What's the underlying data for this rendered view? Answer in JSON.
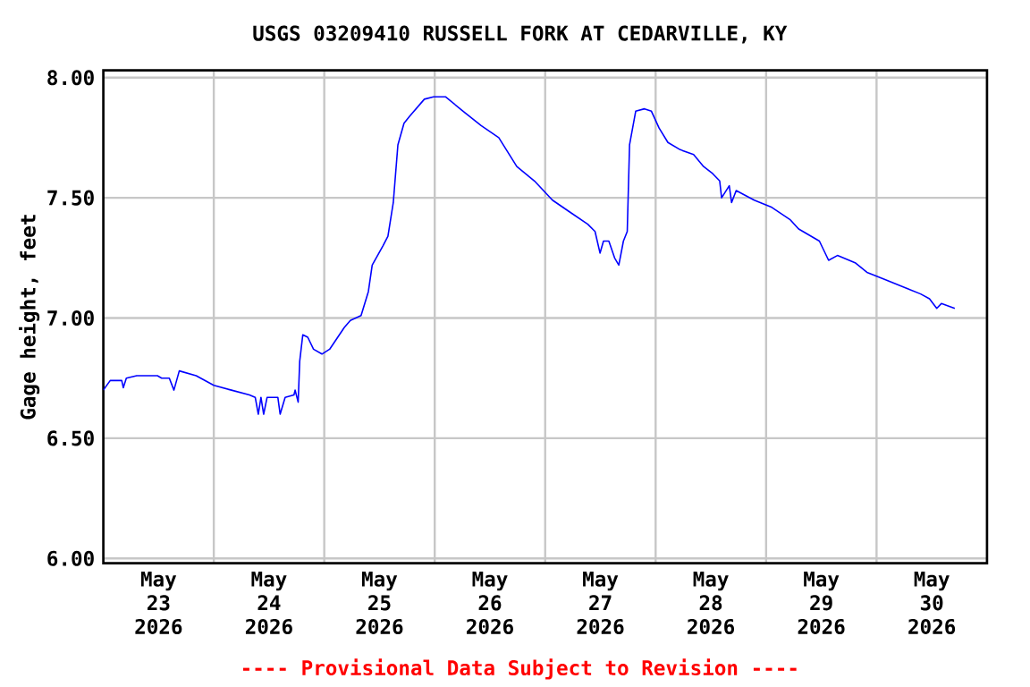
{
  "chart_data": {
    "type": "line",
    "title": "USGS 03209410 RUSSELL FORK AT CEDARVILLE, KY",
    "ylabel": "Gage height, feet",
    "annotations": [
      "---- Provisional Data Subject to Revision ----"
    ],
    "x": [
      "2026-05-23T00:00",
      "2026-05-23T01:30",
      "2026-05-23T04:00",
      "2026-05-23T04:20",
      "2026-05-23T05:00",
      "2026-05-23T07:15",
      "2026-05-23T11:45",
      "2026-05-23T12:40",
      "2026-05-23T14:20",
      "2026-05-23T15:20",
      "2026-05-23T16:30",
      "2026-05-23T20:10",
      "2026-05-23T22:05",
      "2026-05-24T00:00",
      "2026-05-24T03:50",
      "2026-05-24T07:45",
      "2026-05-24T09:00",
      "2026-05-24T09:40",
      "2026-05-24T10:15",
      "2026-05-24T10:50",
      "2026-05-24T11:35",
      "2026-05-24T13:55",
      "2026-05-24T14:25",
      "2026-05-24T15:30",
      "2026-05-24T17:25",
      "2026-05-24T17:40",
      "2026-05-24T18:20",
      "2026-05-24T18:40",
      "2026-05-24T19:20",
      "2026-05-24T20:25",
      "2026-05-24T21:40",
      "2026-05-24T23:30",
      "2026-05-25T01:10",
      "2026-05-25T04:20",
      "2026-05-25T05:40",
      "2026-05-25T08:00",
      "2026-05-25T09:35",
      "2026-05-25T10:25",
      "2026-05-25T12:45",
      "2026-05-25T13:50",
      "2026-05-25T15:00",
      "2026-05-25T16:00",
      "2026-05-25T17:20",
      "2026-05-25T18:35",
      "2026-05-25T21:45",
      "2026-05-25T23:45",
      "2026-05-26T02:20",
      "2026-05-26T06:10",
      "2026-05-26T10:05",
      "2026-05-26T13:55",
      "2026-05-26T17:50",
      "2026-05-26T21:40",
      "2026-05-27T01:35",
      "2026-05-27T05:25",
      "2026-05-27T09:15",
      "2026-05-27T10:50",
      "2026-05-27T11:55",
      "2026-05-27T12:40",
      "2026-05-27T13:50",
      "2026-05-27T15:05",
      "2026-05-27T16:00",
      "2026-05-27T17:00",
      "2026-05-27T17:50",
      "2026-05-27T18:20",
      "2026-05-27T19:40",
      "2026-05-27T21:35",
      "2026-05-27T23:05",
      "2026-05-28T00:45",
      "2026-05-28T02:40",
      "2026-05-28T05:20",
      "2026-05-28T08:15",
      "2026-05-28T10:25",
      "2026-05-28T12:25",
      "2026-05-28T13:55",
      "2026-05-28T14:20",
      "2026-05-28T16:00",
      "2026-05-28T16:30",
      "2026-05-28T17:30",
      "2026-05-28T21:25",
      "2026-05-29T01:15",
      "2026-05-29T05:10",
      "2026-05-29T07:05",
      "2026-05-29T11:35",
      "2026-05-29T13:35",
      "2026-05-29T15:30",
      "2026-05-29T19:20",
      "2026-05-29T21:55",
      "2026-05-30T01:50",
      "2026-05-30T05:40",
      "2026-05-30T09:35",
      "2026-05-30T11:30",
      "2026-05-30T13:05",
      "2026-05-30T14:05",
      "2026-05-30T17:00"
    ],
    "series": [
      {
        "color": "#0000ff",
        "values": [
          6.7,
          6.74,
          6.74,
          6.71,
          6.75,
          6.76,
          6.76,
          6.75,
          6.75,
          6.7,
          6.78,
          6.76,
          6.74,
          6.72,
          6.7,
          6.68,
          6.67,
          6.6,
          6.67,
          6.6,
          6.67,
          6.67,
          6.6,
          6.67,
          6.68,
          6.7,
          6.65,
          6.82,
          6.93,
          6.92,
          6.87,
          6.85,
          6.87,
          6.96,
          6.99,
          7.01,
          7.11,
          7.22,
          7.3,
          7.34,
          7.48,
          7.72,
          7.81,
          7.84,
          7.91,
          7.92,
          7.92,
          7.86,
          7.8,
          7.75,
          7.63,
          7.57,
          7.49,
          7.44,
          7.39,
          7.36,
          7.27,
          7.32,
          7.32,
          7.25,
          7.22,
          7.32,
          7.36,
          7.72,
          7.86,
          7.87,
          7.86,
          7.79,
          7.73,
          7.7,
          7.68,
          7.63,
          7.6,
          7.57,
          7.5,
          7.55,
          7.48,
          7.53,
          7.49,
          7.46,
          7.41,
          7.37,
          7.32,
          7.24,
          7.26,
          7.23,
          7.19,
          7.16,
          7.13,
          7.1,
          7.08,
          7.04,
          7.06,
          7.04
        ]
      }
    ],
    "xlim": [
      "2026-05-23T00:00",
      "2026-05-31T00:00"
    ],
    "ylim": [
      5.98,
      8.03
    ],
    "xticks": [
      {
        "value": "2026-05-24T00:00",
        "label": null
      },
      {
        "value": "2026-05-25T00:00",
        "label": null
      },
      {
        "value": "2026-05-26T00:00",
        "label": null
      },
      {
        "value": "2026-05-27T00:00",
        "label": null
      },
      {
        "value": "2026-05-28T00:00",
        "label": null
      },
      {
        "value": "2026-05-29T00:00",
        "label": null
      },
      {
        "value": "2026-05-30T00:00",
        "label": null
      },
      {
        "value": "2026-05-23T12:00",
        "label": "May 23 2026"
      },
      {
        "value": "2026-05-24T12:00",
        "label": "May 24 2026"
      },
      {
        "value": "2026-05-25T12:00",
        "label": "May 25 2026"
      },
      {
        "value": "2026-05-26T12:00",
        "label": "May 26 2026"
      },
      {
        "value": "2026-05-27T12:00",
        "label": "May 27 2026"
      },
      {
        "value": "2026-05-28T12:00",
        "label": "May 28 2026"
      },
      {
        "value": "2026-05-29T12:00",
        "label": "May 29 2026"
      },
      {
        "value": "2026-05-30T12:00",
        "label": "May 30 2026"
      }
    ],
    "yticks": [
      {
        "value": 6,
        "label": "6.00"
      },
      {
        "value": 6.5,
        "label": "6.50"
      },
      {
        "value": 7,
        "label": "7.00"
      },
      {
        "value": 7.5,
        "label": "7.50"
      },
      {
        "value": 8,
        "label": "8.00"
      }
    ],
    "grid": true,
    "line_style": "solid"
  }
}
